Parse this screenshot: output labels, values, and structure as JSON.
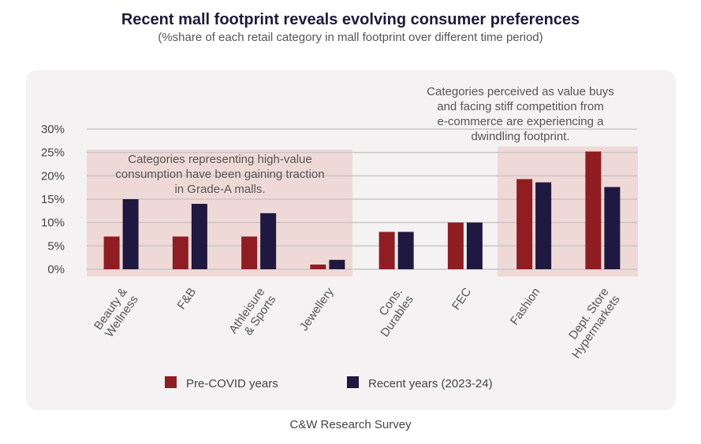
{
  "chart_data": {
    "type": "bar",
    "title": "Recent mall footprint reveals evolving consumer preferences",
    "subtitle": "(%share of each retail category in mall footprint over different time period)",
    "categories": [
      [
        "Beauty &",
        "Wellness"
      ],
      [
        "F&B"
      ],
      [
        "Athleisure",
        "& Sports"
      ],
      [
        "Jewellery"
      ],
      [
        "Cons.",
        "Durables"
      ],
      [
        "FEC"
      ],
      [
        "Fashion"
      ],
      [
        "Dept. Store",
        "Hypermarkets"
      ]
    ],
    "series": [
      {
        "name": "Pre-COVID years",
        "color": "#8f1d22",
        "values": [
          7,
          7,
          7,
          1,
          8,
          10,
          19.3,
          25.2
        ]
      },
      {
        "name": "Recent years (2023-24)",
        "color": "#1f1840",
        "values": [
          15,
          14,
          12,
          2,
          8,
          10,
          18.6,
          17.6
        ]
      }
    ],
    "ylim": [
      0,
      30
    ],
    "yticks": [
      "0%",
      "5%",
      "10%",
      "15%",
      "20%",
      "25%",
      "30%"
    ],
    "annotations": [
      {
        "lines": [
          "Categories representing high-value",
          "consumption have been gaining traction",
          "in Grade-A malls."
        ],
        "highlight_categories": [
          0,
          3
        ]
      },
      {
        "lines": [
          "Categories perceived as value buys",
          "and facing stiff competition from",
          "e-commerce are experiencing a",
          "dwindling footprint."
        ],
        "highlight_categories": [
          6,
          7
        ]
      }
    ],
    "source": "C&W Research Survey",
    "grid": true,
    "legend": "bottom"
  }
}
